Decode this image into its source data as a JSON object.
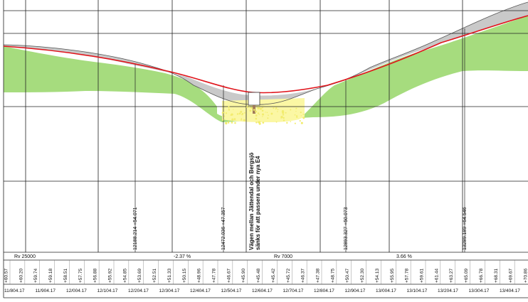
{
  "diagram": {
    "road_note_line1": "Vägen mellan Jättendal och Bergsjö",
    "road_note_line2": "sänks för att passera under nya E4",
    "vertical_curves": [
      {
        "label": "Rv 25000"
      },
      {
        "label": "Rv 7000"
      }
    ],
    "grades": [
      {
        "label": "-2.37 %"
      },
      {
        "label": "3.66 %"
      }
    ],
    "curve_points": [
      {
        "label": "12188.214   +54.071"
      },
      {
        "label": "12472.036   +47.357"
      },
      {
        "label": "12893.327   +50.073"
      },
      {
        "label": "13289.189   +64.546"
      }
    ],
    "elevations": [
      "+60.57",
      "+60.20",
      "+59.74",
      "+59.18",
      "+58.51",
      "+57.75",
      "+56.88",
      "+55.92",
      "+54.85",
      "+53.69",
      "+52.51",
      "+51.33",
      "+50.15",
      "+48.96",
      "+47.78",
      "+46.67",
      "+45.90",
      "+45.48",
      "+45.42",
      "+45.72",
      "+46.37",
      "+47.38",
      "+48.75",
      "+50.47",
      "+52.30",
      "+54.13",
      "+55.95",
      "+57.78",
      "+59.61",
      "+61.44",
      "+63.27",
      "+65.09",
      "+66.78",
      "+68.31",
      "+69.67",
      "+70.86"
    ],
    "stations": [
      "11/804.17",
      "11/904.17",
      "12/004.17",
      "12/104.17",
      "12/204.17",
      "12/304.17",
      "12/404.17",
      "12/504.17",
      "12/604.17",
      "12/704.17",
      "12/804.17",
      "12/904.17",
      "13/004.17",
      "13/104.17",
      "13/204.17",
      "13/304.17",
      "13/404.17",
      "13/5"
    ],
    "colors": {
      "fill": "#a6dc7e",
      "cut": "#cfcfcf",
      "sand": "#fbf7a4",
      "road": "#e0141b",
      "grid": "#222222"
    }
  }
}
